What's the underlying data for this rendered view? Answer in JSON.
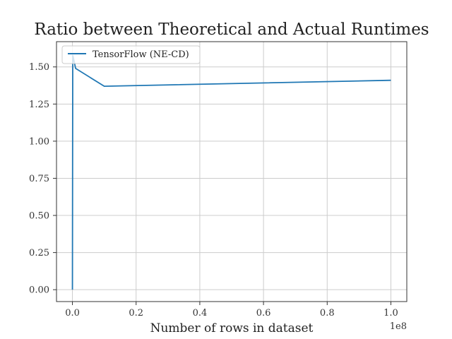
{
  "chart_data": {
    "type": "line",
    "title": "Ratio between Theoretical and Actual Runtimes",
    "xlabel": "Number of rows in dataset",
    "ylabel": "",
    "x_offset_label": "1e8",
    "xlim": [
      -5000000,
      105000000
    ],
    "ylim": [
      -0.08,
      1.67
    ],
    "x_ticks": [
      0,
      20000000,
      40000000,
      60000000,
      80000000,
      100000000
    ],
    "x_tick_labels": [
      "0.0",
      "0.2",
      "0.4",
      "0.6",
      "0.8",
      "1.0"
    ],
    "y_ticks": [
      0,
      0.25,
      0.5,
      0.75,
      1.0,
      1.25,
      1.5
    ],
    "y_tick_labels": [
      "0.00",
      "0.25",
      "0.50",
      "0.75",
      "1.00",
      "1.25",
      "1.50"
    ],
    "grid": true,
    "legend_position": "top-left",
    "series": [
      {
        "name": "TensorFlow (NE-CD)",
        "color": "#1f77b4",
        "x": [
          10,
          100000,
          1000000,
          10000000,
          100000000
        ],
        "y": [
          0.0,
          1.58,
          1.49,
          1.37,
          1.41
        ]
      }
    ]
  }
}
